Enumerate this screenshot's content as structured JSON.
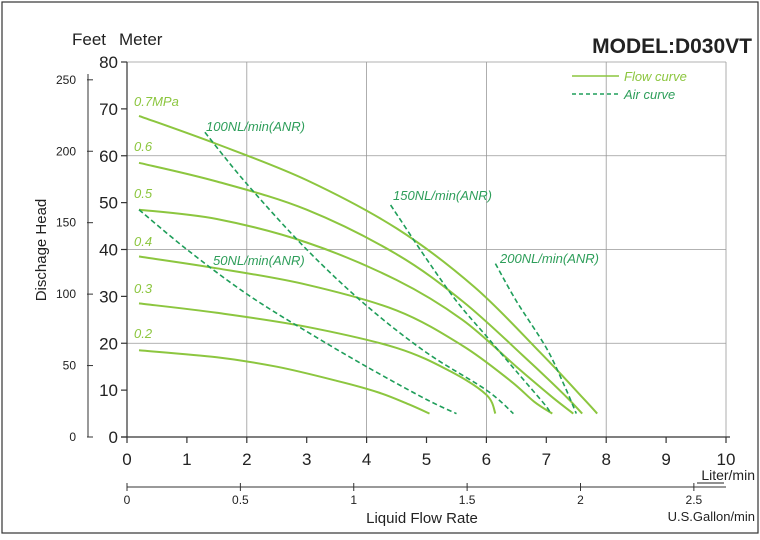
{
  "colors": {
    "flow": "#8cc63f",
    "air": "#1f9e5a",
    "label_flow": "#8cc63f",
    "label_air": "#2e9e5a",
    "grid": "#999999",
    "frame": "#333333",
    "text": "#222222"
  },
  "chart_data": {
    "type": "line",
    "title": "MODEL:D030VT",
    "xlabel": "Liquid Flow Rate",
    "ylabel": "Dischage Head",
    "x_unit_primary": "Liter/min",
    "x_unit_secondary": "U.S.Gallon/min",
    "y_unit_left_outer": "Feet",
    "y_unit_left_inner": "Meter",
    "xlim": [
      0,
      10
    ],
    "ylim": [
      0,
      80
    ],
    "x_ticks": [
      "0",
      "1",
      "2",
      "3",
      "4",
      "5",
      "6",
      "7",
      "8",
      "9",
      "10"
    ],
    "y_ticks_meter": [
      "0",
      "10",
      "20",
      "30",
      "40",
      "50",
      "60",
      "70",
      "80"
    ],
    "y_ticks_feet": [
      "0",
      "50",
      "100",
      "150",
      "200",
      "250"
    ],
    "gallon_ticks": [
      "0",
      "0.5",
      "1",
      "1.5",
      "2",
      "2.5"
    ],
    "grid": true,
    "legend": {
      "placement": "top-right",
      "entries": [
        {
          "name": "Flow curve",
          "style": "solid"
        },
        {
          "name": "Air curve",
          "style": "dashed"
        }
      ]
    },
    "flow_series": [
      {
        "name": "0.7MPa",
        "points": [
          [
            0.2,
            68.5
          ],
          [
            1.5,
            62.5
          ],
          [
            3.0,
            54.8
          ],
          [
            4.5,
            44.5
          ],
          [
            5.8,
            32
          ],
          [
            6.9,
            18
          ],
          [
            7.6,
            8.5
          ],
          [
            7.85,
            5
          ]
        ]
      },
      {
        "name": "0.6",
        "points": [
          [
            0.2,
            58.5
          ],
          [
            1.5,
            54.5
          ],
          [
            3.0,
            48.5
          ],
          [
            4.5,
            39
          ],
          [
            5.6,
            29
          ],
          [
            6.6,
            17.5
          ],
          [
            7.3,
            9
          ],
          [
            7.6,
            5
          ]
        ]
      },
      {
        "name": "0.5",
        "points": [
          [
            0.2,
            48.5
          ],
          [
            1.5,
            46.5
          ],
          [
            3.0,
            41.5
          ],
          [
            4.5,
            33.5
          ],
          [
            5.6,
            25
          ],
          [
            6.5,
            15
          ],
          [
            7.1,
            8.5
          ],
          [
            7.45,
            5
          ]
        ]
      },
      {
        "name": "0.4",
        "points": [
          [
            0.2,
            38.5
          ],
          [
            1.5,
            36
          ],
          [
            3.0,
            32.5
          ],
          [
            4.5,
            27
          ],
          [
            5.6,
            19.5
          ],
          [
            6.4,
            12
          ],
          [
            6.8,
            7.5
          ],
          [
            7.1,
            5
          ]
        ]
      },
      {
        "name": "0.3",
        "points": [
          [
            0.2,
            28.5
          ],
          [
            1.5,
            26.5
          ],
          [
            3.0,
            23.5
          ],
          [
            4.5,
            19
          ],
          [
            5.4,
            14
          ],
          [
            6.0,
            9
          ],
          [
            6.15,
            5
          ]
        ]
      },
      {
        "name": "0.2",
        "points": [
          [
            0.2,
            18.5
          ],
          [
            1.5,
            17
          ],
          [
            2.5,
            15
          ],
          [
            3.5,
            12
          ],
          [
            4.2,
            9.5
          ],
          [
            4.7,
            7
          ],
          [
            5.05,
            5
          ]
        ]
      }
    ],
    "air_series": [
      {
        "name": "50NL/min(ANR)",
        "points": [
          [
            0.2,
            48.5
          ],
          [
            1.0,
            40
          ],
          [
            2.0,
            30.5
          ],
          [
            3.0,
            22.5
          ],
          [
            4.0,
            15
          ],
          [
            5.0,
            8
          ],
          [
            5.5,
            5
          ]
        ]
      },
      {
        "name": "100NL/min(ANR)",
        "points": [
          [
            1.3,
            65
          ],
          [
            2.0,
            54
          ],
          [
            3.0,
            40
          ],
          [
            4.0,
            28
          ],
          [
            5.0,
            18
          ],
          [
            6.0,
            10
          ],
          [
            6.45,
            5
          ]
        ]
      },
      {
        "name": "150NL/min(ANR)",
        "points": [
          [
            4.4,
            49.5
          ],
          [
            5.0,
            38
          ],
          [
            5.5,
            29
          ],
          [
            6.0,
            21.5
          ],
          [
            6.5,
            14
          ],
          [
            7.0,
            6.5
          ],
          [
            7.05,
            5
          ]
        ]
      },
      {
        "name": "200NL/min(ANR)",
        "points": [
          [
            6.15,
            37
          ],
          [
            6.5,
            29
          ],
          [
            7.0,
            19
          ],
          [
            7.3,
            11
          ],
          [
            7.5,
            5
          ]
        ]
      }
    ],
    "flow_labels": [
      "0.7MPa",
      "0.6",
      "0.5",
      "0.4",
      "0.3",
      "0.2"
    ],
    "air_labels": [
      "100NL/min(ANR)",
      "150NL/min(ANR)",
      "50NL/min(ANR)",
      "200NL/min(ANR)"
    ]
  }
}
